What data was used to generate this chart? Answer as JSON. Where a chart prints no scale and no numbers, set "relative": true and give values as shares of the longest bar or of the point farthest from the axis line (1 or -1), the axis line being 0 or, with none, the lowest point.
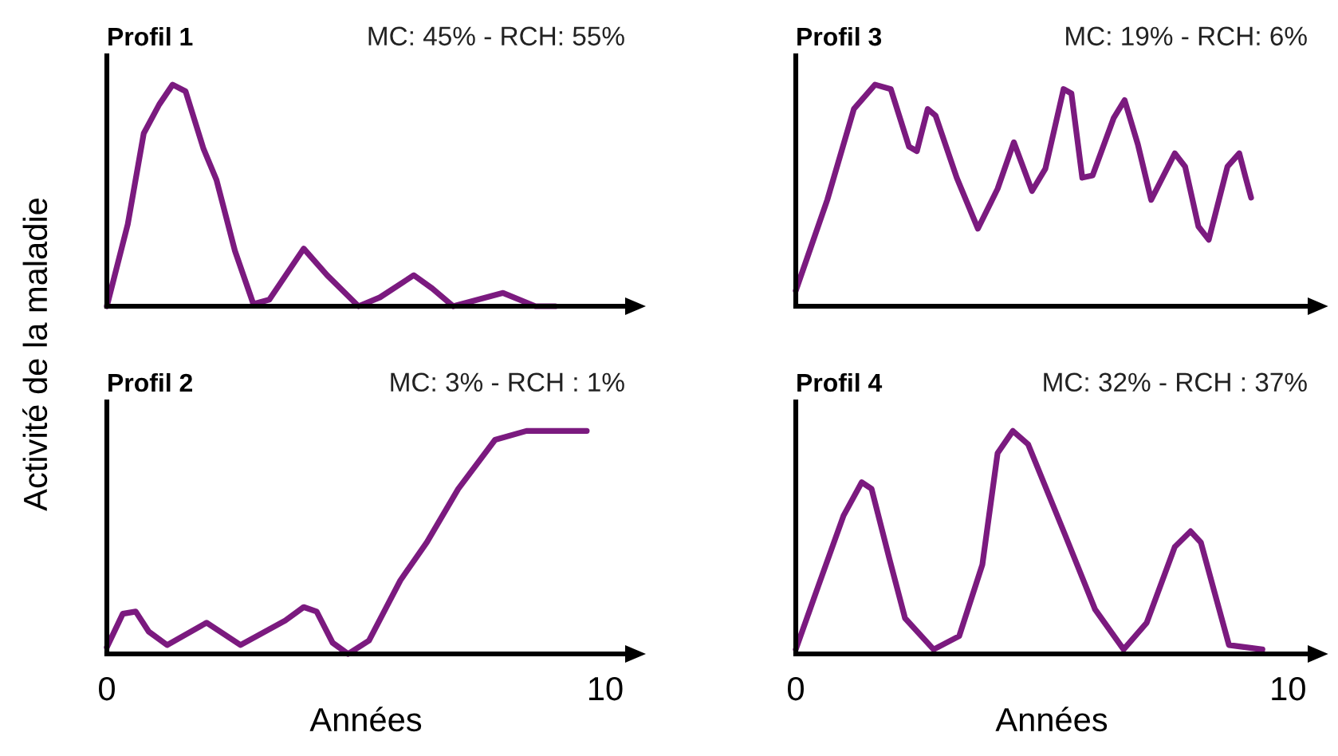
{
  "chart_data": [
    {
      "type": "line",
      "title": "Profil 1",
      "ylabel": "Activité de la maladie",
      "annotations": [
        "MC: 45% - RCH: 55%"
      ],
      "relative": true,
      "xlim": [
        0,
        10.4
      ],
      "tick_labels": false,
      "series": [
        {
          "color": "#7b1a7f",
          "x": [
            0,
            0.42,
            0.74,
            1.05,
            1.32,
            1.58,
            1.94,
            2.2,
            2.57,
            2.94,
            3.26,
            3.95,
            4.42,
            5.05,
            5.48,
            6.16,
            6.53,
            6.95,
            7.95,
            8.6,
            9.0
          ],
          "values": [
            0,
            0.37,
            0.78,
            0.91,
            1.0,
            0.97,
            0.71,
            0.57,
            0.25,
            0.01,
            0.03,
            0.26,
            0.14,
            0.0,
            0.04,
            0.14,
            0.08,
            0.0,
            0.06,
            0.0,
            0.0
          ]
        }
      ]
    },
    {
      "type": "line",
      "title": "Profil 3",
      "annotations": [
        "MC: 19% - RCH: 6%"
      ],
      "relative": true,
      "xlim": [
        0,
        10.4
      ],
      "tick_labels": false,
      "series": [
        {
          "color": "#7b1a7f",
          "x": [
            0,
            0.64,
            1.18,
            1.61,
            1.93,
            2.3,
            2.46,
            2.68,
            2.84,
            3.27,
            3.7,
            4.1,
            4.43,
            4.8,
            5.07,
            5.44,
            5.6,
            5.82,
            6.03,
            6.46,
            6.68,
            6.95,
            7.22,
            7.7,
            7.91,
            8.18,
            8.39,
            8.77,
            9.01,
            9.14,
            9.25
          ],
          "values": [
            0.07,
            0.48,
            0.89,
            1.0,
            0.98,
            0.72,
            0.7,
            0.89,
            0.86,
            0.58,
            0.35,
            0.53,
            0.74,
            0.52,
            0.62,
            0.98,
            0.96,
            0.58,
            0.59,
            0.85,
            0.93,
            0.73,
            0.48,
            0.69,
            0.63,
            0.36,
            0.3,
            0.63,
            0.69,
            0.58,
            0.49
          ]
        }
      ]
    },
    {
      "type": "line",
      "title": "Profil 2",
      "xlabel": "Années",
      "annotations": [
        "MC: 3% - RCH : 1%"
      ],
      "relative": true,
      "xlim": [
        0,
        10.4
      ],
      "xticks": [
        0,
        10
      ],
      "tick_labels": "x",
      "series": [
        {
          "color": "#7b1a7f",
          "x": [
            0,
            0.32,
            0.58,
            0.84,
            1.21,
            2.0,
            2.68,
            3.58,
            3.95,
            4.21,
            4.53,
            4.84,
            5.26,
            5.89,
            6.42,
            7.05,
            7.79,
            8.42,
            9.63
          ],
          "values": [
            0.03,
            0.18,
            0.19,
            0.1,
            0.04,
            0.14,
            0.04,
            0.15,
            0.21,
            0.19,
            0.05,
            0.0,
            0.06,
            0.33,
            0.5,
            0.74,
            0.96,
            1.0,
            1.0
          ]
        }
      ]
    },
    {
      "type": "line",
      "title": "Profil 4",
      "xlabel": "Années",
      "annotations": [
        "MC: 32% - RCH : 37%"
      ],
      "relative": true,
      "xlim": [
        0,
        10.4
      ],
      "xticks": [
        0,
        10
      ],
      "tick_labels": "x",
      "series": [
        {
          "color": "#7b1a7f",
          "x": [
            0,
            0.45,
            0.97,
            1.34,
            1.54,
            1.91,
            2.22,
            2.8,
            3.32,
            3.79,
            4.1,
            4.41,
            4.72,
            5.46,
            6.08,
            6.66,
            7.13,
            7.7,
            8.02,
            8.23,
            8.8,
            9.48
          ],
          "values": [
            0.02,
            0.3,
            0.62,
            0.77,
            0.74,
            0.42,
            0.16,
            0.02,
            0.08,
            0.4,
            0.9,
            1.0,
            0.94,
            0.54,
            0.2,
            0.02,
            0.14,
            0.48,
            0.55,
            0.5,
            0.04,
            0.02
          ]
        }
      ]
    }
  ]
}
